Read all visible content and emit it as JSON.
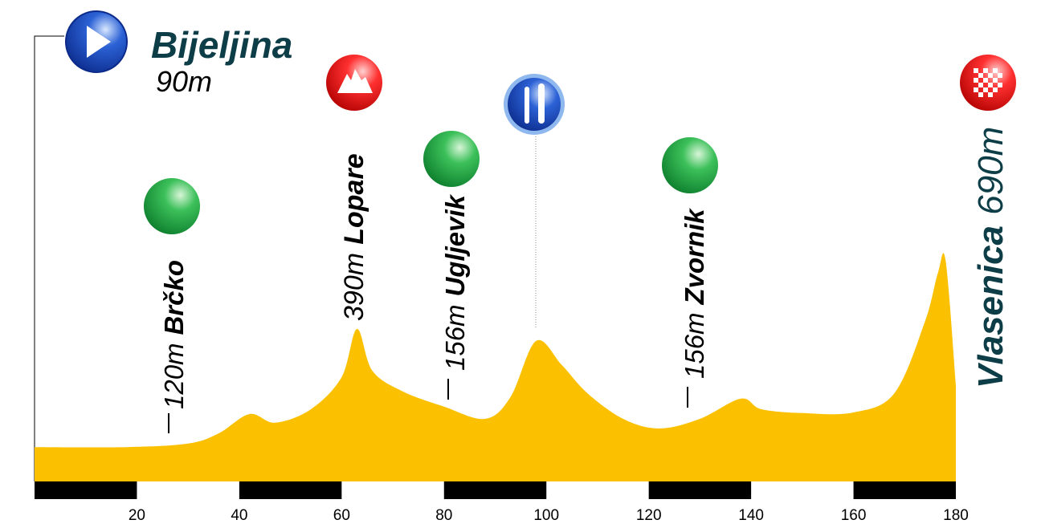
{
  "chart_data": {
    "type": "area",
    "start": {
      "name": "Bijeljina",
      "elevation": "90m"
    },
    "places": [
      {
        "name": "Brčko",
        "elevation": "120m"
      },
      {
        "name": "Lopare",
        "elevation": "390m"
      },
      {
        "name": "Ugljevik",
        "elevation": "156m"
      },
      {
        "name": "Zvornik",
        "elevation": "156m"
      },
      {
        "name": "Vlasenica",
        "elevation": "690m"
      }
    ],
    "x": [
      0,
      18,
      30,
      36,
      42,
      47,
      54,
      60,
      63,
      66,
      72,
      80,
      88,
      93,
      98,
      103,
      108,
      115,
      122,
      130,
      138,
      142,
      150,
      160,
      168,
      174,
      176.5,
      178,
      180
    ],
    "values": [
      107,
      107,
      118,
      150,
      210,
      183,
      225,
      325,
      475,
      345,
      280,
      233,
      195,
      263,
      438,
      363,
      275,
      195,
      165,
      195,
      258,
      225,
      213,
      215,
      275,
      500,
      650,
      688,
      300
    ],
    "color": "#fbc100",
    "xlim": [
      0,
      180
    ],
    "xticks": [
      20,
      40,
      60,
      80,
      100,
      120,
      140,
      160,
      180
    ],
    "ylim": [
      0,
      700
    ]
  }
}
